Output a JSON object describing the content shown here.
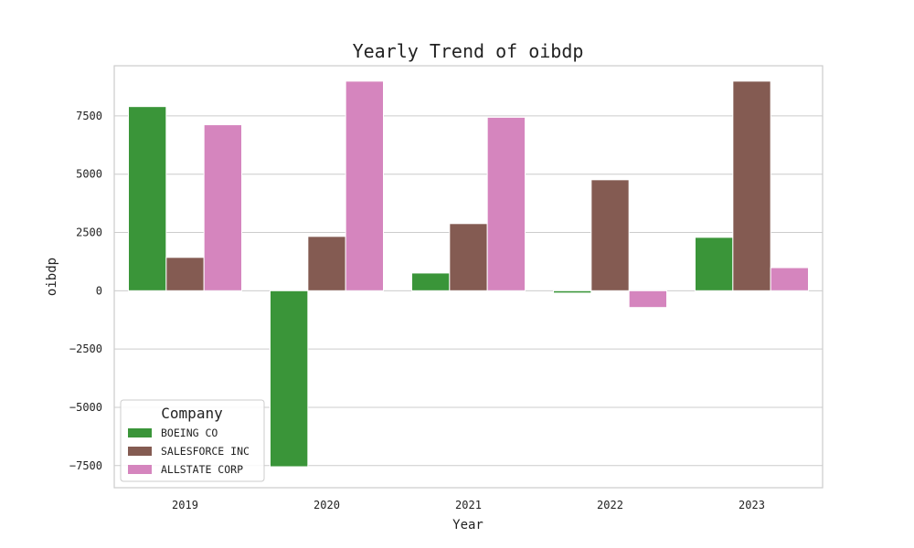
{
  "chart_data": {
    "type": "bar",
    "title": "Yearly Trend of oibdp",
    "xlabel": "Year",
    "ylabel": "oibdp",
    "categories": [
      "2019",
      "2020",
      "2021",
      "2022",
      "2023"
    ],
    "series": [
      {
        "name": "BOEING CO",
        "color": "#3a9539",
        "values": [
          7900,
          -7550,
          760,
          -100,
          2290
        ]
      },
      {
        "name": "SALESFORCE INC",
        "color": "#845b52",
        "values": [
          1430,
          2330,
          2880,
          4760,
          8990
        ]
      },
      {
        "name": "ALLSTATE CORP",
        "color": "#d585be",
        "values": [
          7120,
          8990,
          7440,
          -720,
          990
        ]
      }
    ],
    "yticks": [
      -7500,
      -5000,
      -2500,
      0,
      2500,
      5000,
      7500
    ],
    "ytick_labels": [
      "−7500",
      "−5000",
      "−2500",
      "0",
      "2500",
      "5000",
      "7500"
    ],
    "ylim": [
      -8450,
      9650
    ],
    "grid": true,
    "legend": {
      "title": "Company",
      "position": "lower-left"
    }
  }
}
